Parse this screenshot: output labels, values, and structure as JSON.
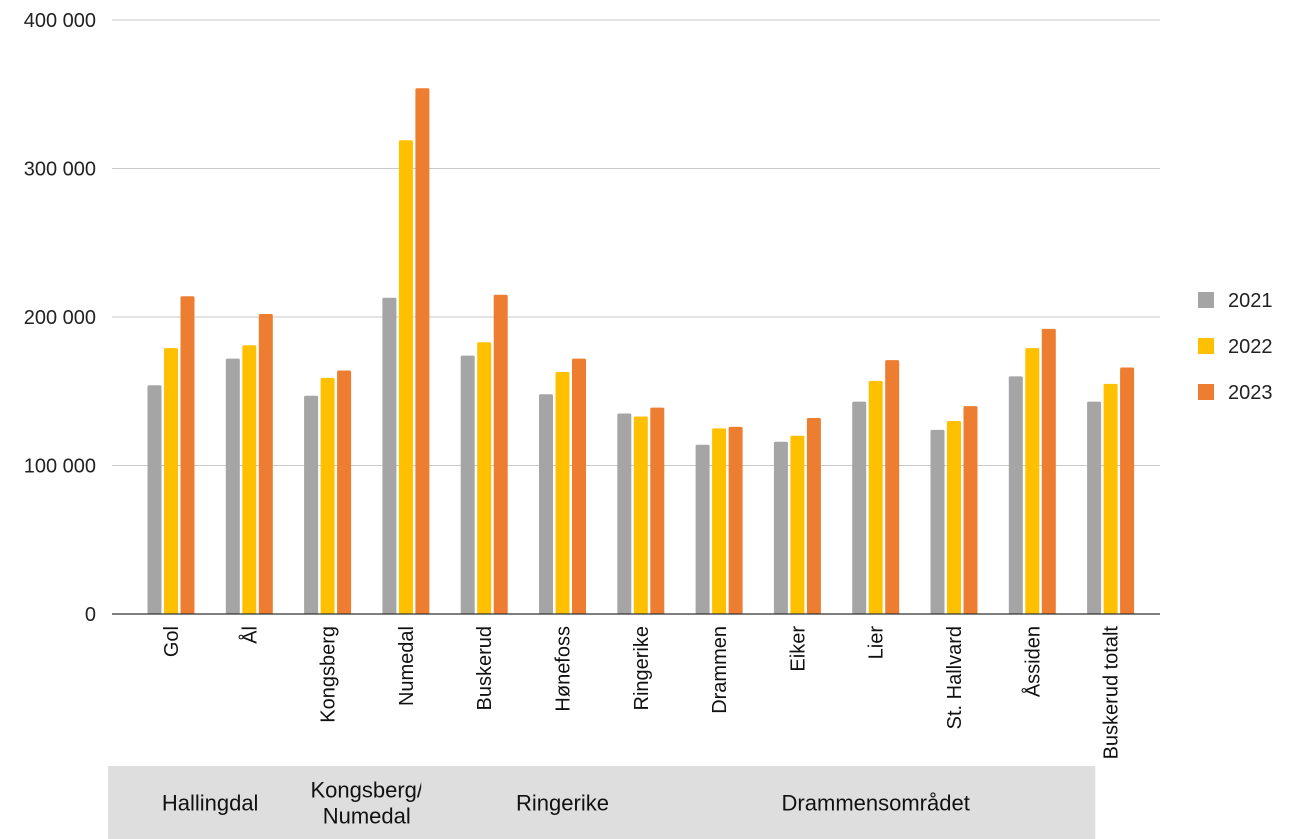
{
  "chart_data": {
    "type": "bar",
    "title": "",
    "xlabel": "",
    "ylabel": "",
    "ylim": [
      0,
      400000
    ],
    "yticks": [
      {
        "value": 0,
        "label": "0"
      },
      {
        "value": 100000,
        "label": "100 000"
      },
      {
        "value": 200000,
        "label": "200 000"
      },
      {
        "value": 300000,
        "label": "300 000"
      },
      {
        "value": 400000,
        "label": "400 000"
      }
    ],
    "grid": true,
    "legend_position": "right",
    "categories": [
      "Gol",
      "Ål",
      "Kongsberg",
      "Numedal",
      "Buskerud",
      "Hønefoss",
      "Ringerike",
      "Drammen",
      "Eiker",
      "Lier",
      "St. Hallvard",
      "Åssiden",
      "Buskerud totalt"
    ],
    "series": [
      {
        "name": "2021",
        "color": "#a5a5a5",
        "values": [
          154000,
          172000,
          147000,
          213000,
          174000,
          148000,
          135000,
          114000,
          116000,
          143000,
          124000,
          160000,
          143000
        ]
      },
      {
        "name": "2022",
        "color": "#ffc000",
        "values": [
          179000,
          181000,
          159000,
          319000,
          183000,
          163000,
          133000,
          125000,
          120000,
          157000,
          130000,
          179000,
          155000
        ]
      },
      {
        "name": "2023",
        "color": "#ed7d31",
        "values": [
          214000,
          202000,
          164000,
          354000,
          215000,
          172000,
          139000,
          126000,
          132000,
          171000,
          140000,
          192000,
          166000
        ]
      }
    ],
    "groups": [
      {
        "label_lines": [
          "Hallingdal"
        ],
        "categories": [
          "Gol",
          "Ål"
        ]
      },
      {
        "label_lines": [
          "Kongsberg/",
          "Numedal"
        ],
        "categories": [
          "Kongsberg",
          "Numedal"
        ]
      },
      {
        "label_lines": [
          "Ringerike"
        ],
        "categories": [
          "Buskerud",
          "Hønefoss",
          "Ringerike"
        ]
      },
      {
        "label_lines": [
          "Drammensområdet"
        ],
        "categories": [
          "Drammen",
          "Eiker",
          "Lier",
          "St. Hallvard",
          "Åssiden"
        ]
      }
    ],
    "colors": {
      "grid": "#c8c8c8",
      "axis": "#333333",
      "group_box": "#dedede"
    }
  }
}
